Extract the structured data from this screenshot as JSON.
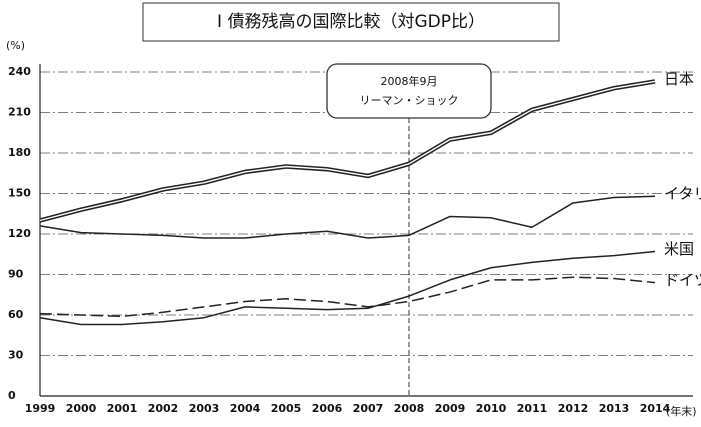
{
  "chart_data": {
    "type": "line",
    "title": "Ⅰ 債務残高の国際比較（対GDP比）",
    "y_unit": "(%)",
    "x_unit": "(年末)",
    "annotation": [
      "2008年9月",
      "リーマン・ショック"
    ],
    "event_category": "2008",
    "categories": [
      "1999",
      "2000",
      "2001",
      "2002",
      "2003",
      "2004",
      "2005",
      "2006",
      "2007",
      "2008",
      "2009",
      "2010",
      "2011",
      "2012",
      "2013",
      "2014"
    ],
    "series": [
      {
        "name": "日本",
        "color": "#222222",
        "double": true,
        "values": [
          130,
          138,
          145,
          153,
          158,
          166,
          170,
          168,
          163,
          172,
          190,
          195,
          212,
          220,
          228,
          233
        ]
      },
      {
        "name": "イタリア",
        "color": "#222222",
        "values": [
          126,
          121,
          120,
          119,
          117,
          117,
          120,
          122,
          117,
          119,
          133,
          132,
          125,
          143,
          147,
          148
        ]
      },
      {
        "name": "米国",
        "color": "#222222",
        "values": [
          58,
          53,
          53,
          55,
          58,
          66,
          65,
          64,
          65,
          74,
          86,
          95,
          99,
          102,
          104,
          107
        ]
      },
      {
        "name": "ドイツ",
        "color": "#222222",
        "dashed": true,
        "values": [
          61,
          60,
          59,
          62,
          66,
          70,
          72,
          70,
          66,
          70,
          77,
          86,
          86,
          88,
          87,
          84
        ]
      }
    ],
    "ylim": [
      0,
      240
    ],
    "yticks": [
      0,
      30,
      60,
      90,
      120,
      150,
      180,
      210,
      240
    ],
    "grid": true
  }
}
